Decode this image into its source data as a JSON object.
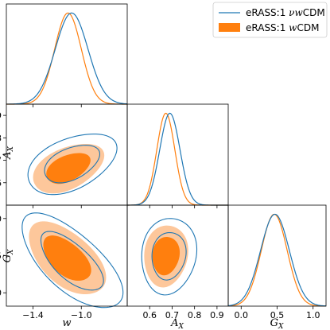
{
  "chart_data": {
    "type": "corner",
    "parameters": [
      {
        "key": "w",
        "label": "w",
        "range": [
          -1.62,
          -0.62
        ],
        "ticks": [
          -1.4,
          -1.0
        ],
        "tick_labels": [
          "−1.4",
          "−1.0"
        ]
      },
      {
        "key": "A_X",
        "label": "A",
        "label_sub": "X",
        "range": [
          0.5,
          0.95
        ],
        "ticks": [
          0.6,
          0.7,
          0.8,
          0.9
        ],
        "tick_labels": [
          "0.6",
          "0.7",
          "0.8",
          "0.9"
        ]
      },
      {
        "key": "G_X",
        "label": "G",
        "label_sub": "X",
        "range": [
          -0.18,
          1.18
        ],
        "ticks": [
          0.0,
          0.5,
          1.0
        ],
        "tick_labels": [
          "0.0",
          "0.5",
          "1.0"
        ]
      }
    ],
    "legend": {
      "placement": "top-right",
      "entries": [
        {
          "name_parts": [
            "eRASS:1 ",
            "νw",
            "CDM"
          ],
          "style": "line",
          "color": "#1f77b4"
        },
        {
          "name_parts": [
            "eRASS:1 ",
            "w",
            "CDM"
          ],
          "style": "patch",
          "color": "#ff7f0e"
        }
      ]
    },
    "series": [
      {
        "name": "eRASS:1 νwCDM",
        "color": "#1f77b4",
        "style": "contour-lines",
        "marginals": {
          "w": {
            "mean": -1.08,
            "sigma": 0.135
          },
          "A_X": {
            "mean": 0.69,
            "sigma": 0.045
          },
          "G_X": {
            "mean": 0.47,
            "sigma": 0.2
          }
        },
        "contours": {
          "w-A_X": {
            "center": [
              -1.08,
              0.685
            ],
            "sd": [
              0.15,
              0.055
            ],
            "corr": 0.45
          },
          "w-G_X": {
            "center": [
              -1.08,
              0.42
            ],
            "sd": [
              0.17,
              0.26
            ],
            "corr": -0.68
          },
          "A_X-G_X": {
            "center": [
              0.685,
              0.5
            ],
            "sd": [
              0.05,
              0.21
            ],
            "corr": 0.1
          }
        }
      },
      {
        "name": "eRASS:1 wCDM",
        "color": "#ff7f0e",
        "style": "filled",
        "marginals": {
          "w": {
            "mean": -1.11,
            "sigma": 0.11
          },
          "A_X": {
            "mean": 0.672,
            "sigma": 0.04
          },
          "G_X": {
            "mean": 0.46,
            "sigma": 0.18
          }
        },
        "contours": {
          "w-A_X": {
            "center": [
              -1.11,
              0.665
            ],
            "sd": [
              0.12,
              0.045
            ],
            "corr": 0.45
          },
          "w-G_X": {
            "center": [
              -1.12,
              0.46
            ],
            "sd": [
              0.13,
              0.2
            ],
            "corr": -0.55
          },
          "A_X-G_X": {
            "center": [
              0.672,
              0.5
            ],
            "sd": [
              0.04,
              0.17
            ],
            "corr": 0.1
          }
        }
      }
    ],
    "levels": [
      "1σ",
      "2σ"
    ],
    "grid": false
  }
}
